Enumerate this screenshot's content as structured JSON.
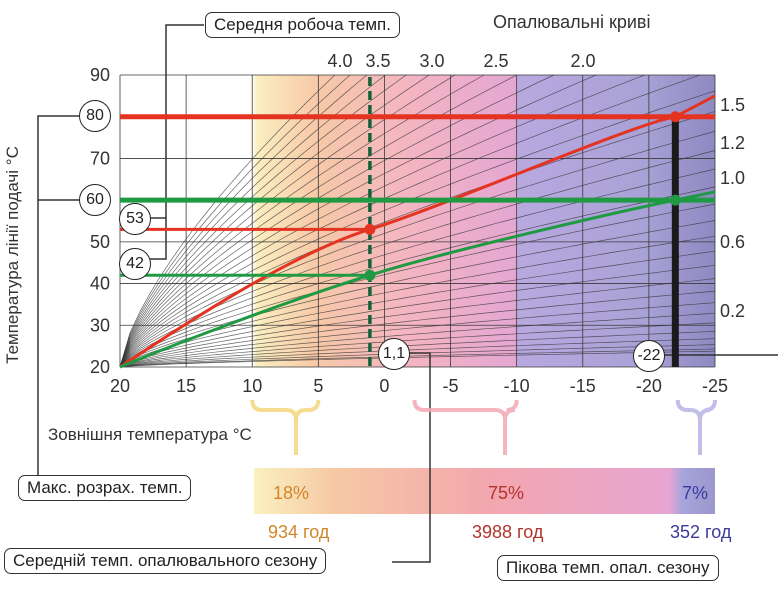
{
  "chart_data": {
    "type": "line",
    "title": "Опалювальні криві",
    "xlabel": "Зовнішня температура °C",
    "ylabel": "Температура лінії подачі °C",
    "xlim": [
      20,
      -25
    ],
    "ylim": [
      20,
      90
    ],
    "x_ticks": [
      "20",
      "15",
      "10",
      "5",
      "0",
      "-5",
      "-10",
      "-15",
      "-20",
      "-25"
    ],
    "y_ticks": [
      "20",
      "30",
      "40",
      "50",
      "60",
      "70",
      "80",
      "90"
    ],
    "curve_labels_top": [
      "4.0",
      "3.5",
      "3.0",
      "2.5",
      "2.0"
    ],
    "curve_labels_right": [
      "1.5",
      "1.2",
      "1.0",
      "0.6",
      "0.2"
    ],
    "series": [
      {
        "name": "",
        "color": "#e53321",
        "x": [
          20,
          1.1,
          -22,
          -25
        ],
        "y": [
          20,
          53,
          80,
          85
        ]
      },
      {
        "name": "",
        "color": "#1f9a43",
        "x": [
          20,
          1.1,
          -22,
          -25
        ],
        "y": [
          20,
          42,
          60,
          62
        ]
      }
    ],
    "annotations": {
      "mean_operating_temp": "Середня робоча темп.",
      "max_design_temp": "Макс. розрах. темп.",
      "season_mean_temp": "Середній темп. опалювального сезону",
      "season_peak_temp": "Пікова темп. опал. сезону",
      "circle_values": [
        "80",
        "60",
        "53",
        "42",
        "1,1",
        "-22"
      ]
    },
    "season_bar": {
      "segments": [
        {
          "percent": "18%",
          "hours": "934 год",
          "color": "#f5e6a4",
          "text_color": "#d2862c"
        },
        {
          "percent": "75%",
          "hours": "3988 год",
          "color": "#f4a3b0",
          "text_color": "#b3332d"
        },
        {
          "percent": "7%",
          "hours": "352 год",
          "color": "#a8a6db",
          "text_color": "#3d3a9e"
        }
      ]
    },
    "grid": true
  }
}
